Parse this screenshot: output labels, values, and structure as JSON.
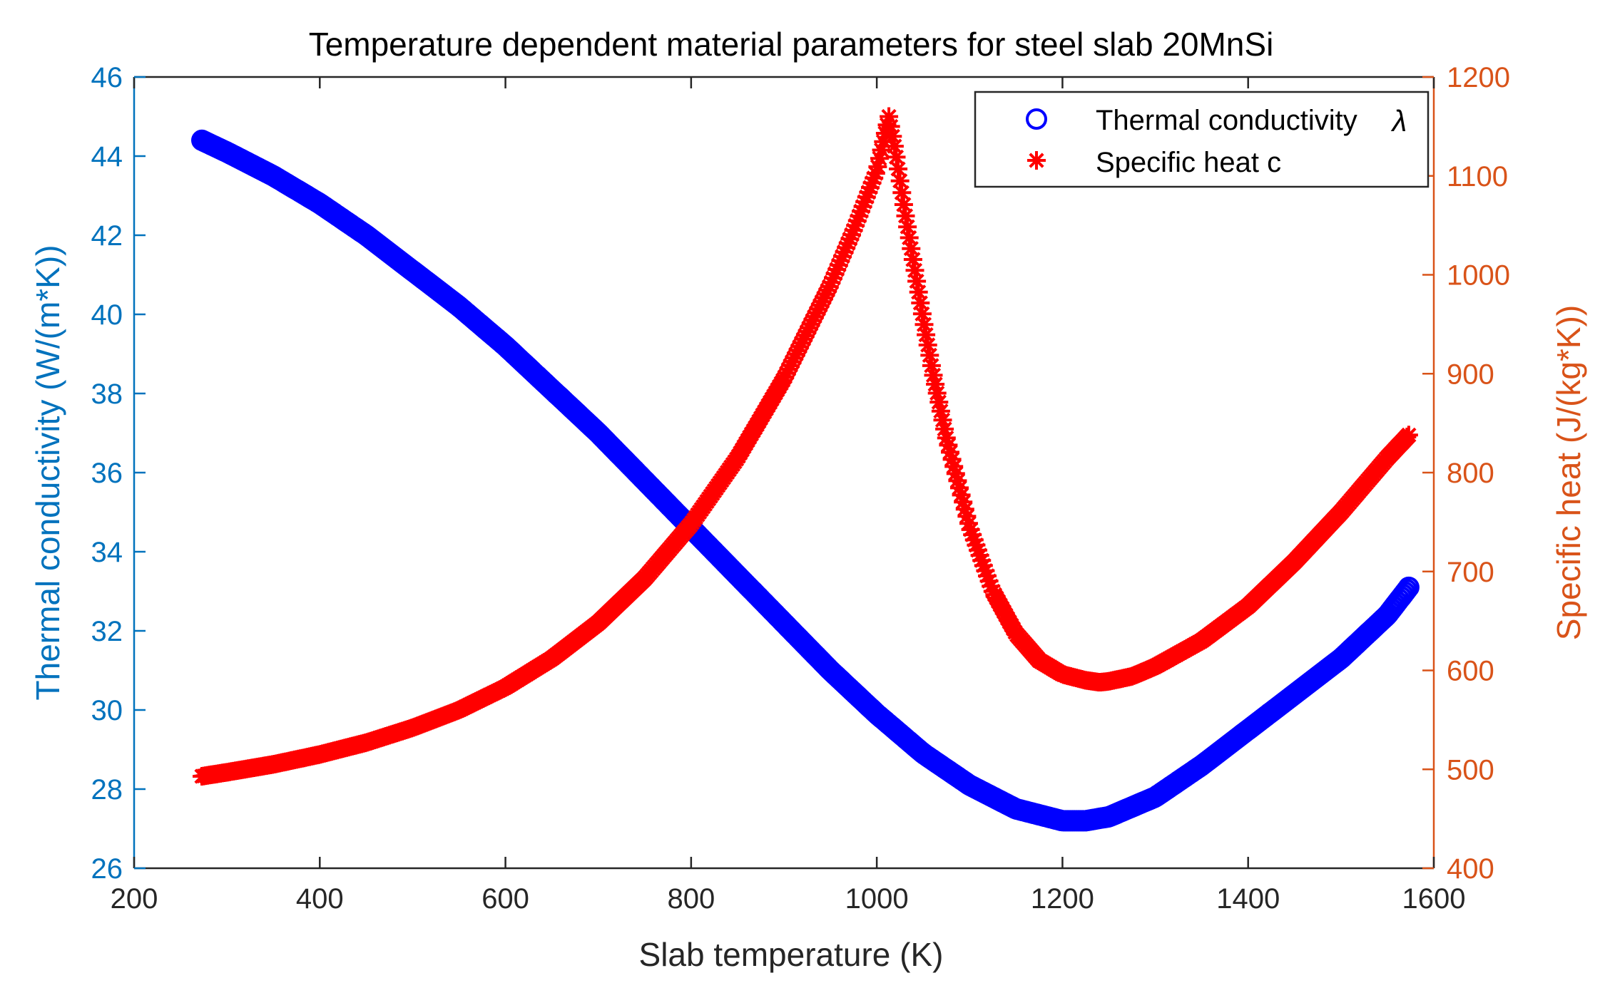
{
  "chart_data": {
    "type": "scatter",
    "title": "Temperature dependent material parameters for steel slab 20MnSi",
    "xlabel": "Slab temperature (K)",
    "ylabel_left": "Thermal conductivity (W/(m*K))",
    "ylabel_right": "Specific heat (J/(kg*K))",
    "xlim": [
      200,
      1600
    ],
    "ylim_left": [
      26,
      46
    ],
    "ylim_right": [
      400,
      1200
    ],
    "x_ticks": [
      200,
      400,
      600,
      800,
      1000,
      1200,
      1400,
      1600
    ],
    "y_left_ticks": [
      26,
      28,
      30,
      32,
      34,
      36,
      38,
      40,
      42,
      44,
      46
    ],
    "y_right_ticks": [
      400,
      500,
      600,
      700,
      800,
      900,
      1000,
      1100,
      1200
    ],
    "grid": false,
    "legend_position": "top-right",
    "colors": {
      "left_axis": "#0072BD",
      "right_axis": "#D95319",
      "conductivity": "#0000FF",
      "specific_heat": "#FF0000",
      "axis": "#262626"
    },
    "series": [
      {
        "name": "Thermal conductivity",
        "legend_label": "Thermal conductivity",
        "legend_symbol": "λ",
        "marker": "circle",
        "axis": "left",
        "x": [
          273,
          300,
          350,
          400,
          450,
          500,
          550,
          600,
          650,
          700,
          750,
          800,
          850,
          900,
          950,
          1000,
          1050,
          1100,
          1150,
          1200,
          1225,
          1250,
          1300,
          1350,
          1400,
          1450,
          1500,
          1550,
          1573
        ],
        "y": [
          44.4,
          44.1,
          43.5,
          42.8,
          42.0,
          41.1,
          40.2,
          39.2,
          38.1,
          37.0,
          35.8,
          34.6,
          33.4,
          32.2,
          31.0,
          29.9,
          28.9,
          28.1,
          27.5,
          27.2,
          27.2,
          27.3,
          27.8,
          28.6,
          29.5,
          30.4,
          31.3,
          32.4,
          33.1
        ]
      },
      {
        "name": "Specific heat",
        "legend_label": "Specific heat c",
        "marker": "asterisk",
        "axis": "right",
        "x": [
          273,
          300,
          350,
          400,
          450,
          500,
          550,
          600,
          650,
          700,
          750,
          800,
          850,
          900,
          950,
          975,
          1000,
          1013,
          1020,
          1030,
          1040,
          1050,
          1060,
          1075,
          1100,
          1125,
          1150,
          1175,
          1200,
          1225,
          1240,
          1250,
          1275,
          1300,
          1350,
          1400,
          1450,
          1500,
          1550,
          1573
        ],
        "y": [
          493,
          497,
          505,
          515,
          527,
          542,
          560,
          583,
          612,
          648,
          693,
          748,
          815,
          895,
          990,
          1045,
          1105,
          1160,
          1125,
          1065,
          1010,
          955,
          903,
          835,
          745,
          680,
          637,
          610,
          596,
          590,
          588,
          589,
          594,
          604,
          630,
          665,
          710,
          760,
          815,
          838
        ]
      }
    ]
  }
}
